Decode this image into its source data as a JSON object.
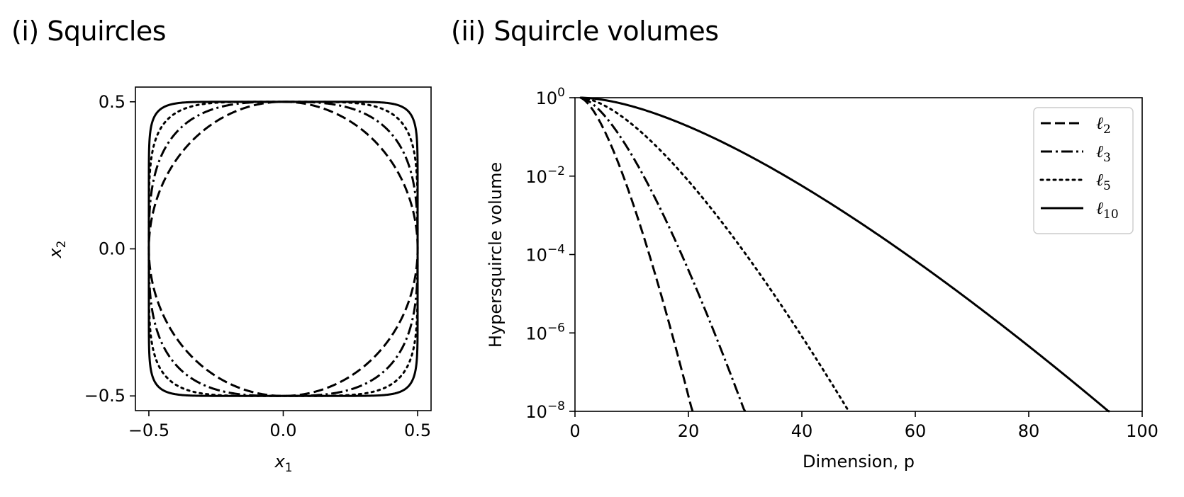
{
  "chart_data": [
    {
      "type": "line",
      "title": "(i) Squircles",
      "xlabel": "x",
      "xlabel_sub": "1",
      "ylabel": "x",
      "ylabel_sub": "2",
      "xlim": [
        -0.55,
        0.55
      ],
      "ylim": [
        -0.55,
        0.55
      ],
      "xticks": [
        -0.5,
        0.0,
        0.5
      ],
      "xtick_labels": [
        "−0.5",
        "0.0",
        "0.5"
      ],
      "yticks": [
        -0.5,
        0.0,
        0.5
      ],
      "ytick_labels": [
        "−0.5",
        "0.0",
        "0.5"
      ],
      "grid": false,
      "series": [
        {
          "p": 2,
          "style": "dashed",
          "radius": 0.5
        },
        {
          "p": 3,
          "style": "dashdot",
          "radius": 0.5
        },
        {
          "p": 5,
          "style": "dotted",
          "radius": 0.5
        },
        {
          "p": 10,
          "style": "solid",
          "radius": 0.5
        }
      ]
    },
    {
      "type": "line",
      "title": "(ii) Squircle volumes",
      "xlabel": "Dimension, p",
      "ylabel": "Hypersquircle volume",
      "xlim": [
        0,
        100
      ],
      "ylim": [
        1e-08,
        1
      ],
      "yscale": "log",
      "xticks": [
        0,
        20,
        40,
        60,
        80,
        100
      ],
      "xtick_labels": [
        "0",
        "20",
        "40",
        "60",
        "80",
        "100"
      ],
      "yticks": [
        0,
        -2,
        -4,
        -6,
        -8
      ],
      "ytick_base": "10",
      "ytick_exponents": [
        "0",
        "−2",
        "−4",
        "−6",
        "−8"
      ],
      "grid": false,
      "legend_position": "top-right",
      "series": [
        {
          "name": "ℓ",
          "sub": "2",
          "norm": 2,
          "style": "dashed",
          "x_end": 21
        },
        {
          "name": "ℓ",
          "sub": "3",
          "norm": 3,
          "style": "dashdot",
          "x_end": 30
        },
        {
          "name": "ℓ",
          "sub": "5",
          "norm": 5,
          "style": "dotted",
          "x_end": 48
        },
        {
          "name": "ℓ",
          "sub": "10",
          "norm": 10,
          "style": "solid",
          "x_end": 95
        }
      ]
    }
  ]
}
